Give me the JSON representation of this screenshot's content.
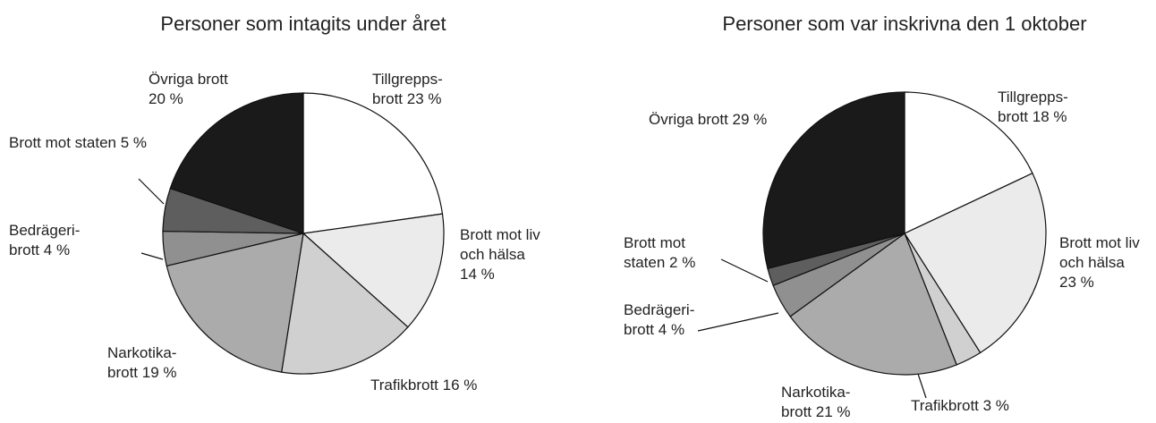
{
  "chart_data": [
    {
      "type": "pie",
      "title": "Personer som intagits under året",
      "categories": [
        "Tillgrepps-\nbrott",
        "Brott mot liv\noch hälsa",
        "Trafikbrott",
        "Narkotika-\nbrott",
        "Bedrägeri-\nbrott",
        "Brott mot staten",
        "Övriga brott"
      ],
      "values": [
        23,
        14,
        16,
        19,
        4,
        5,
        20
      ],
      "value_labels": [
        "23 %",
        "14 %",
        "16 %",
        "19 %",
        "4 %",
        "5 %",
        "20 %"
      ],
      "colors": [
        "#ffffff",
        "#ebebeb",
        "#d0d0d0",
        "#ababab",
        "#909090",
        "#5e5e5e",
        "#1a1a1a"
      ]
    },
    {
      "type": "pie",
      "title": "Personer som var inskrivna den 1 oktober",
      "categories": [
        "Tillgrepps-\nbrott",
        "Brott mot liv\noch hälsa",
        "Trafikbrott",
        "Narkotika-\nbrott",
        "Bedrägeri-\nbrott",
        "Brott mot\nstaten",
        "Övriga brott"
      ],
      "values": [
        18,
        23,
        3,
        21,
        4,
        2,
        29
      ],
      "value_labels": [
        "18 %",
        "23 %",
        "3 %",
        "21 %",
        "4 %",
        "2 %",
        "29 %"
      ],
      "colors": [
        "#ffffff",
        "#ebebeb",
        "#d0d0d0",
        "#ababab",
        "#909090",
        "#5e5e5e",
        "#1a1a1a"
      ]
    }
  ]
}
